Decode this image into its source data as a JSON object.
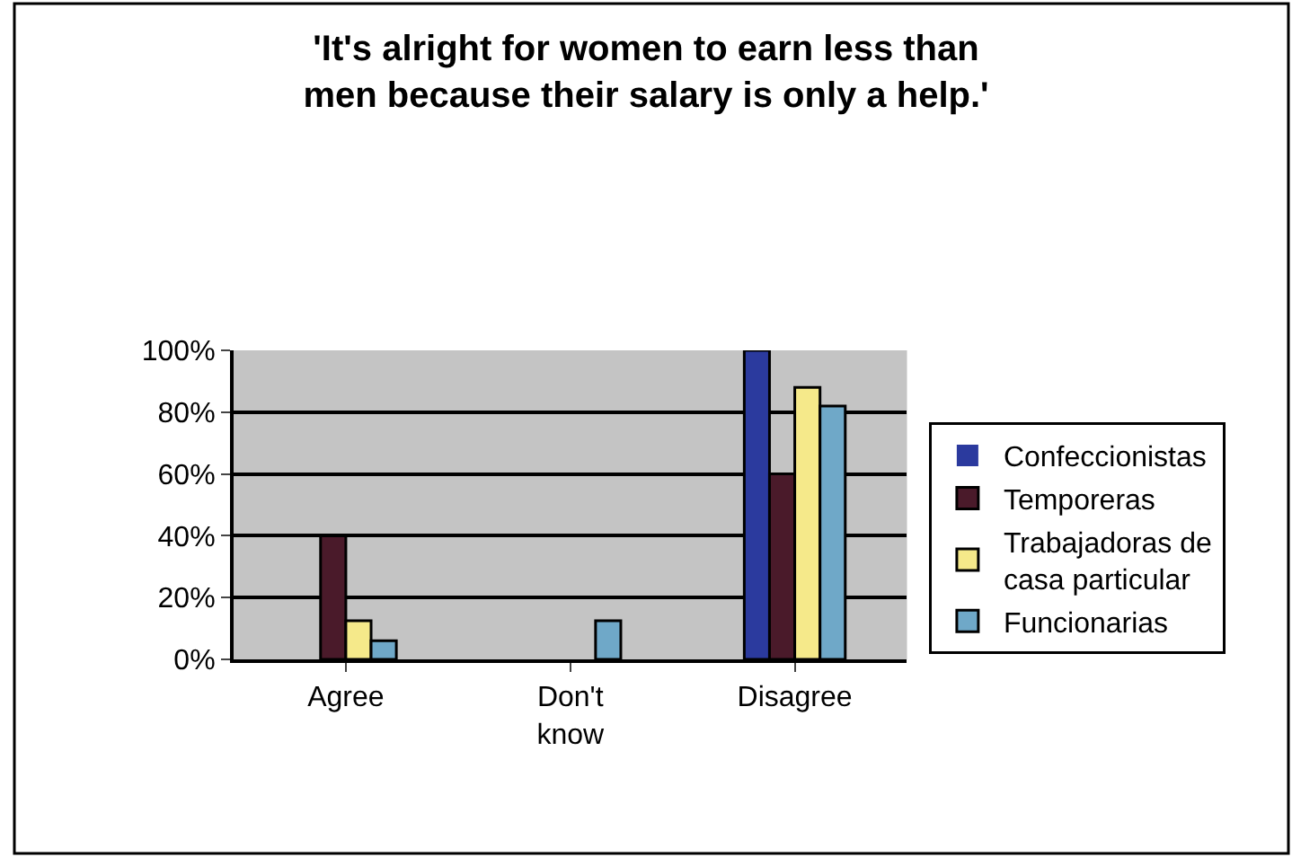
{
  "chart_data": {
    "type": "bar",
    "title": "'It's alright for women to earn less than men because their salary is only a help.'",
    "categories": [
      "Agree",
      "Don't know",
      "Disagree"
    ],
    "series": [
      {
        "name": "Confeccionistas",
        "color": "#2b3a9e",
        "values": [
          0,
          0,
          100
        ]
      },
      {
        "name": "Temporeras",
        "color": "#4a1a2a",
        "values": [
          40,
          0,
          60
        ]
      },
      {
        "name": "Trabajadoras de casa particular",
        "color": "#f5e98a",
        "values": [
          12.5,
          0,
          88
        ]
      },
      {
        "name": "Funcionarias",
        "color": "#6fa8c8",
        "values": [
          6,
          12.5,
          82
        ]
      }
    ],
    "ylim": [
      0,
      100
    ],
    "yticks": [
      {
        "value": 0,
        "label": "0%"
      },
      {
        "value": 20,
        "label": "20%"
      },
      {
        "value": 40,
        "label": "40%"
      },
      {
        "value": 60,
        "label": "60%"
      },
      {
        "value": 80,
        "label": "80%"
      },
      {
        "value": 100,
        "label": "100%"
      }
    ],
    "grid": "y",
    "legend": "right"
  }
}
